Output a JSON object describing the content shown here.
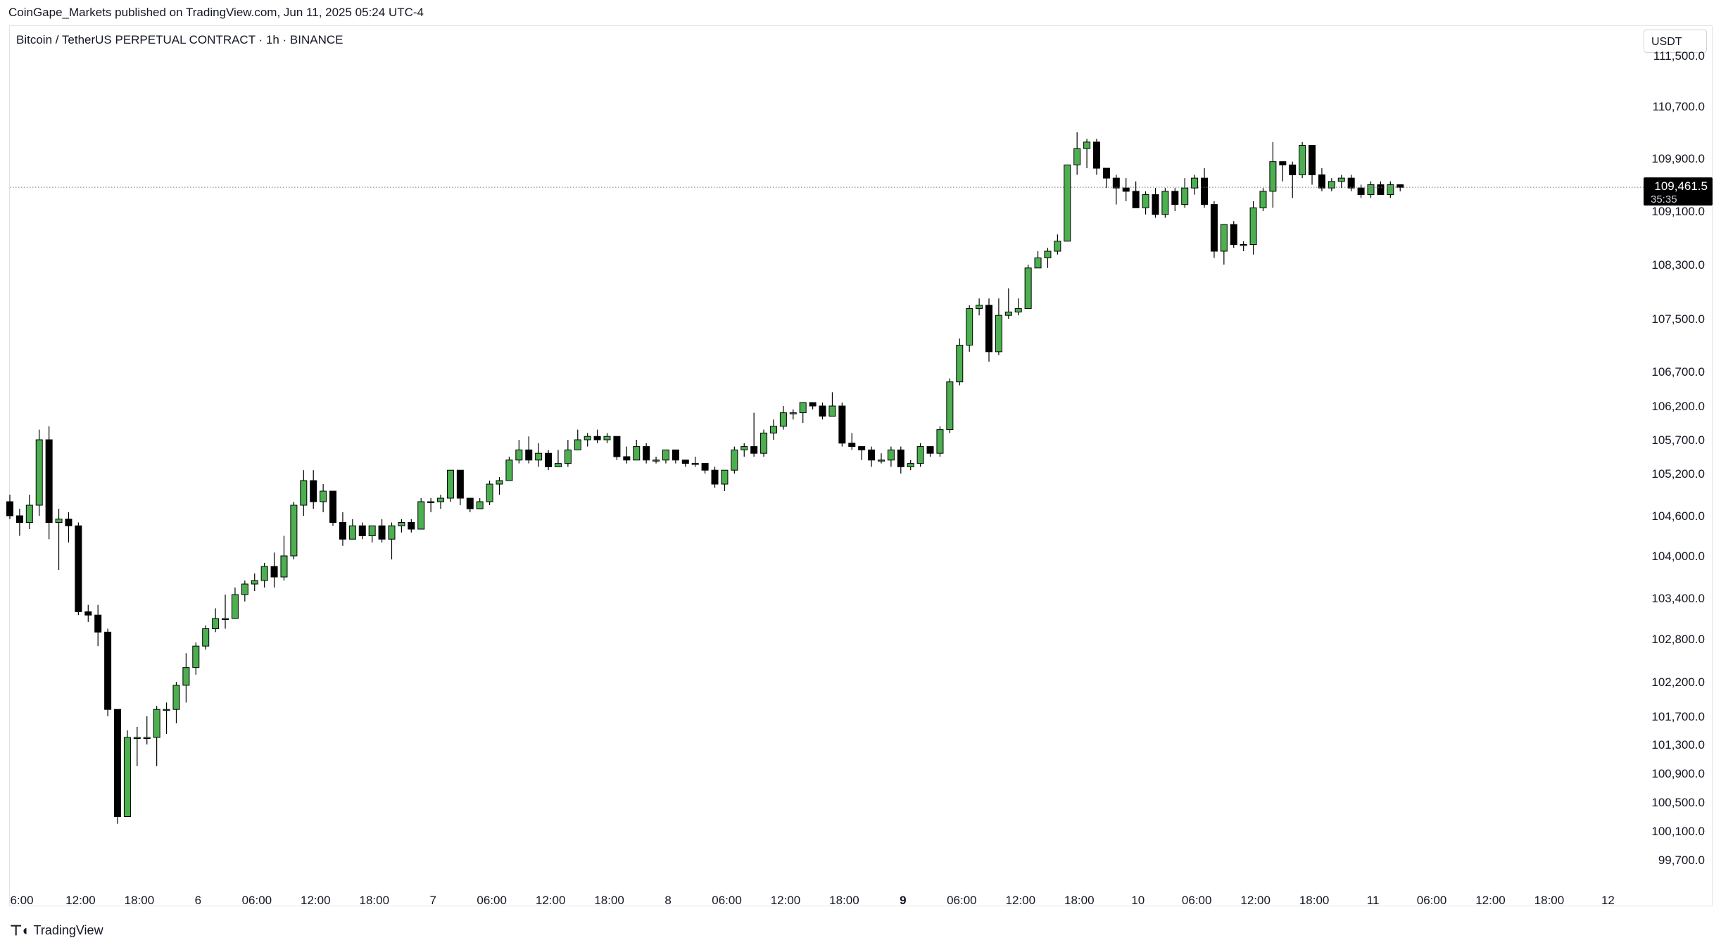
{
  "header": {
    "published_line": "CoinGape_Markets published on TradingView.com, Jun 11, 2025 05:24 UTC-4"
  },
  "chart_title": "Bitcoin / TetherUS PERPETUAL CONTRACT · 1h · BINANCE",
  "currency_label": "USDT",
  "footer": {
    "brand": "TradingView"
  },
  "colors": {
    "up": "#4caf50",
    "down": "#000000",
    "axis_text": "#131722",
    "grid_line": "#787b86"
  },
  "chart_data": {
    "type": "candlestick",
    "title": "Bitcoin / TetherUS PERPETUAL CONTRACT · 1h · BINANCE",
    "y_axis": {
      "label": "USDT",
      "position": "right",
      "ticks": [
        110700,
        109900,
        109100,
        108300,
        107500,
        106700,
        106200,
        105700,
        105200,
        104600,
        104000,
        103400,
        102800,
        102200,
        101700,
        101300,
        100900,
        100500,
        100100,
        99700
      ],
      "tick_labels": [
        "110,700.0",
        "109,900.0",
        "109,100.0",
        "108,300.0",
        "107,500.0",
        "106,700.0",
        "106,200.0",
        "105,700.0",
        "105,200.0",
        "104,600.0",
        "104,000.0",
        "103,400.0",
        "102,800.0",
        "102,200.0",
        "101,700.0",
        "101,300.0",
        "100,900.0",
        "100,500.0",
        "100,100.0",
        "99,700.0"
      ],
      "partial_top_label": "111,500.0"
    },
    "x_axis": {
      "ticks": [
        {
          "label": "6:00",
          "bar": 0
        },
        {
          "label": "12:00",
          "bar": 6
        },
        {
          "label": "18:00",
          "bar": 12
        },
        {
          "label": "6",
          "bar": 18
        },
        {
          "label": "06:00",
          "bar": 24
        },
        {
          "label": "12:00",
          "bar": 30
        },
        {
          "label": "18:00",
          "bar": 36
        },
        {
          "label": "7",
          "bar": 42
        },
        {
          "label": "06:00",
          "bar": 48
        },
        {
          "label": "12:00",
          "bar": 54
        },
        {
          "label": "18:00",
          "bar": 60
        },
        {
          "label": "8",
          "bar": 66
        },
        {
          "label": "06:00",
          "bar": 72
        },
        {
          "label": "12:00",
          "bar": 78
        },
        {
          "label": "18:00",
          "bar": 84
        },
        {
          "label": "9",
          "bar": 90,
          "bold": true
        },
        {
          "label": "06:00",
          "bar": 96
        },
        {
          "label": "12:00",
          "bar": 102
        },
        {
          "label": "18:00",
          "bar": 108
        },
        {
          "label": "10",
          "bar": 114
        },
        {
          "label": "06:00",
          "bar": 120
        },
        {
          "label": "12:00",
          "bar": 126
        },
        {
          "label": "18:00",
          "bar": 132
        },
        {
          "label": "11",
          "bar": 138
        },
        {
          "label": "06:00",
          "bar": 144
        },
        {
          "label": "12:00",
          "bar": 150
        },
        {
          "label": "18:00",
          "bar": 156
        },
        {
          "label": "12",
          "bar": 162
        }
      ]
    },
    "last_price": 109461.5,
    "last_price_label": "109,461.5",
    "countdown": "35:35",
    "candles": [
      [
        104800,
        104600,
        104900,
        104550
      ],
      [
        104600,
        104500,
        104700,
        104300
      ],
      [
        104500,
        104750,
        104900,
        104400
      ],
      [
        104750,
        105700,
        105850,
        104600
      ],
      [
        105700,
        104500,
        105900,
        104250
      ],
      [
        104500,
        104550,
        104700,
        103800
      ],
      [
        104550,
        104450,
        104650,
        104200
      ],
      [
        104450,
        103200,
        104500,
        103150
      ],
      [
        103200,
        103150,
        103300,
        103050
      ],
      [
        103150,
        102900,
        103300,
        102700
      ],
      [
        102900,
        101800,
        102950,
        101700
      ],
      [
        101800,
        100300,
        101800,
        100200
      ],
      [
        100300,
        101400,
        101500,
        100300
      ],
      [
        101400,
        101400,
        101550,
        101000
      ],
      [
        101400,
        101400,
        101700,
        101300
      ],
      [
        101400,
        101800,
        101850,
        101000
      ],
      [
        101800,
        101800,
        101900,
        101450
      ],
      [
        101800,
        102150,
        102200,
        101600
      ],
      [
        102150,
        102400,
        102600,
        101900
      ],
      [
        102400,
        102700,
        102750,
        102300
      ],
      [
        102700,
        102950,
        103000,
        102650
      ],
      [
        102950,
        103100,
        103250,
        102900
      ],
      [
        103100,
        103100,
        103450,
        102950
      ],
      [
        103100,
        103450,
        103550,
        103100
      ],
      [
        103450,
        103600,
        103650,
        103350
      ],
      [
        103600,
        103650,
        103750,
        103500
      ],
      [
        103650,
        103850,
        103900,
        103550
      ],
      [
        103850,
        103700,
        104050,
        103550
      ],
      [
        103700,
        104000,
        104300,
        103650
      ],
      [
        104000,
        104750,
        104800,
        103950
      ],
      [
        104750,
        105100,
        105250,
        104600
      ],
      [
        105100,
        104800,
        105250,
        104700
      ],
      [
        104800,
        104950,
        105050,
        104650
      ],
      [
        104950,
        104500,
        104950,
        104450
      ],
      [
        104500,
        104250,
        104650,
        104150
      ],
      [
        104250,
        104450,
        104550,
        104250
      ],
      [
        104450,
        104300,
        104500,
        104250
      ],
      [
        104300,
        104450,
        104450,
        104200
      ],
      [
        104450,
        104250,
        104550,
        104200
      ],
      [
        104250,
        104450,
        104500,
        103950
      ],
      [
        104450,
        104500,
        104550,
        104350
      ],
      [
        104500,
        104400,
        104550,
        104350
      ],
      [
        104400,
        104800,
        104850,
        104400
      ],
      [
        104800,
        104800,
        104850,
        104650
      ],
      [
        104800,
        104850,
        104900,
        104700
      ],
      [
        104850,
        105250,
        105250,
        104800
      ],
      [
        105250,
        104850,
        105250,
        104750
      ],
      [
        104850,
        104700,
        104850,
        104650
      ],
      [
        104700,
        104800,
        104850,
        104700
      ],
      [
        104800,
        105050,
        105100,
        104750
      ],
      [
        105050,
        105100,
        105150,
        104900
      ],
      [
        105100,
        105400,
        105450,
        105100
      ],
      [
        105400,
        105550,
        105700,
        105350
      ],
      [
        105550,
        105400,
        105750,
        105350
      ],
      [
        105400,
        105500,
        105650,
        105300
      ],
      [
        105500,
        105300,
        105550,
        105250
      ],
      [
        105300,
        105350,
        105550,
        105300
      ],
      [
        105350,
        105550,
        105700,
        105300
      ],
      [
        105550,
        105700,
        105850,
        105550
      ],
      [
        105700,
        105750,
        105800,
        105600
      ],
      [
        105750,
        105700,
        105850,
        105650
      ],
      [
        105700,
        105750,
        105800,
        105650
      ],
      [
        105750,
        105450,
        105750,
        105400
      ],
      [
        105450,
        105400,
        105600,
        105350
      ],
      [
        105400,
        105600,
        105700,
        105400
      ],
      [
        105600,
        105400,
        105650,
        105350
      ],
      [
        105400,
        105400,
        105450,
        105350
      ],
      [
        105400,
        105550,
        105550,
        105350
      ],
      [
        105550,
        105400,
        105550,
        105350
      ],
      [
        105400,
        105350,
        105400,
        105300
      ],
      [
        105350,
        105350,
        105450,
        105300
      ],
      [
        105350,
        105250,
        105350,
        105200
      ],
      [
        105250,
        105050,
        105300,
        105000
      ],
      [
        105050,
        105250,
        105250,
        104950
      ],
      [
        105250,
        105550,
        105600,
        105200
      ],
      [
        105550,
        105600,
        105650,
        105450
      ],
      [
        105600,
        105500,
        106100,
        105450
      ],
      [
        105500,
        105800,
        105850,
        105450
      ],
      [
        105800,
        105900,
        106000,
        105700
      ],
      [
        105900,
        106100,
        106200,
        105850
      ],
      [
        106100,
        106100,
        106150,
        106000
      ],
      [
        106100,
        106250,
        106250,
        105950
      ],
      [
        106250,
        106200,
        106250,
        106150
      ],
      [
        106200,
        106050,
        106250,
        106000
      ],
      [
        106050,
        106200,
        106400,
        106050
      ],
      [
        106200,
        105650,
        106250,
        105600
      ],
      [
        105650,
        105600,
        105800,
        105550
      ],
      [
        105600,
        105550,
        105600,
        105400
      ],
      [
        105550,
        105400,
        105600,
        105300
      ],
      [
        105400,
        105400,
        105500,
        105350
      ],
      [
        105400,
        105550,
        105600,
        105300
      ],
      [
        105550,
        105300,
        105600,
        105200
      ],
      [
        105300,
        105350,
        105400,
        105250
      ],
      [
        105350,
        105600,
        105650,
        105300
      ],
      [
        105600,
        105500,
        105600,
        105450
      ],
      [
        105500,
        105850,
        105900,
        105450
      ],
      [
        105850,
        106550,
        106600,
        105800
      ],
      [
        106550,
        107100,
        107200,
        106500
      ],
      [
        107100,
        107650,
        107700,
        107000
      ],
      [
        107650,
        107700,
        107800,
        107550
      ],
      [
        107700,
        107000,
        107800,
        106850
      ],
      [
        107000,
        107550,
        107800,
        106950
      ],
      [
        107550,
        107600,
        107950,
        107500
      ],
      [
        107600,
        107650,
        107800,
        107550
      ],
      [
        107650,
        108250,
        108300,
        107650
      ],
      [
        108250,
        108400,
        108500,
        108250
      ],
      [
        108400,
        108500,
        108550,
        108250
      ],
      [
        108500,
        108650,
        108750,
        108450
      ],
      [
        108650,
        109800,
        109800,
        108650
      ],
      [
        109800,
        110050,
        110300,
        109650
      ],
      [
        110050,
        110150,
        110200,
        109750
      ],
      [
        110150,
        109750,
        110200,
        109650
      ],
      [
        109750,
        109600,
        109750,
        109450
      ],
      [
        109600,
        109450,
        109650,
        109200
      ],
      [
        109450,
        109400,
        109600,
        109250
      ],
      [
        109400,
        109150,
        109550,
        109150
      ],
      [
        109150,
        109350,
        109400,
        109050
      ],
      [
        109350,
        109050,
        109450,
        109000
      ],
      [
        109050,
        109400,
        109450,
        109000
      ],
      [
        109400,
        109200,
        109450,
        109100
      ],
      [
        109200,
        109450,
        109600,
        109150
      ],
      [
        109450,
        109600,
        109650,
        109350
      ],
      [
        109600,
        109200,
        109750,
        109150
      ],
      [
        109200,
        108500,
        109250,
        108400
      ],
      [
        108500,
        108900,
        108900,
        108300
      ],
      [
        108900,
        108600,
        108950,
        108550
      ],
      [
        108600,
        108600,
        108650,
        108500
      ],
      [
        108600,
        109150,
        109250,
        108450
      ],
      [
        109150,
        109400,
        109450,
        109100
      ],
      [
        109400,
        109850,
        110150,
        109150
      ],
      [
        109850,
        109800,
        109850,
        109550
      ],
      [
        109800,
        109650,
        109850,
        109300
      ],
      [
        109650,
        110100,
        110150,
        109600
      ],
      [
        110100,
        109650,
        110100,
        109500
      ],
      [
        109650,
        109450,
        109750,
        109400
      ],
      [
        109450,
        109550,
        109600,
        109400
      ],
      [
        109550,
        109600,
        109650,
        109450
      ],
      [
        109600,
        109450,
        109650,
        109400
      ],
      [
        109450,
        109350,
        109500,
        109300
      ],
      [
        109350,
        109500,
        109550,
        109300
      ],
      [
        109500,
        109350,
        109550,
        109350
      ],
      [
        109350,
        109500,
        109550,
        109300
      ],
      [
        109500,
        109460,
        109500,
        109400
      ]
    ]
  }
}
